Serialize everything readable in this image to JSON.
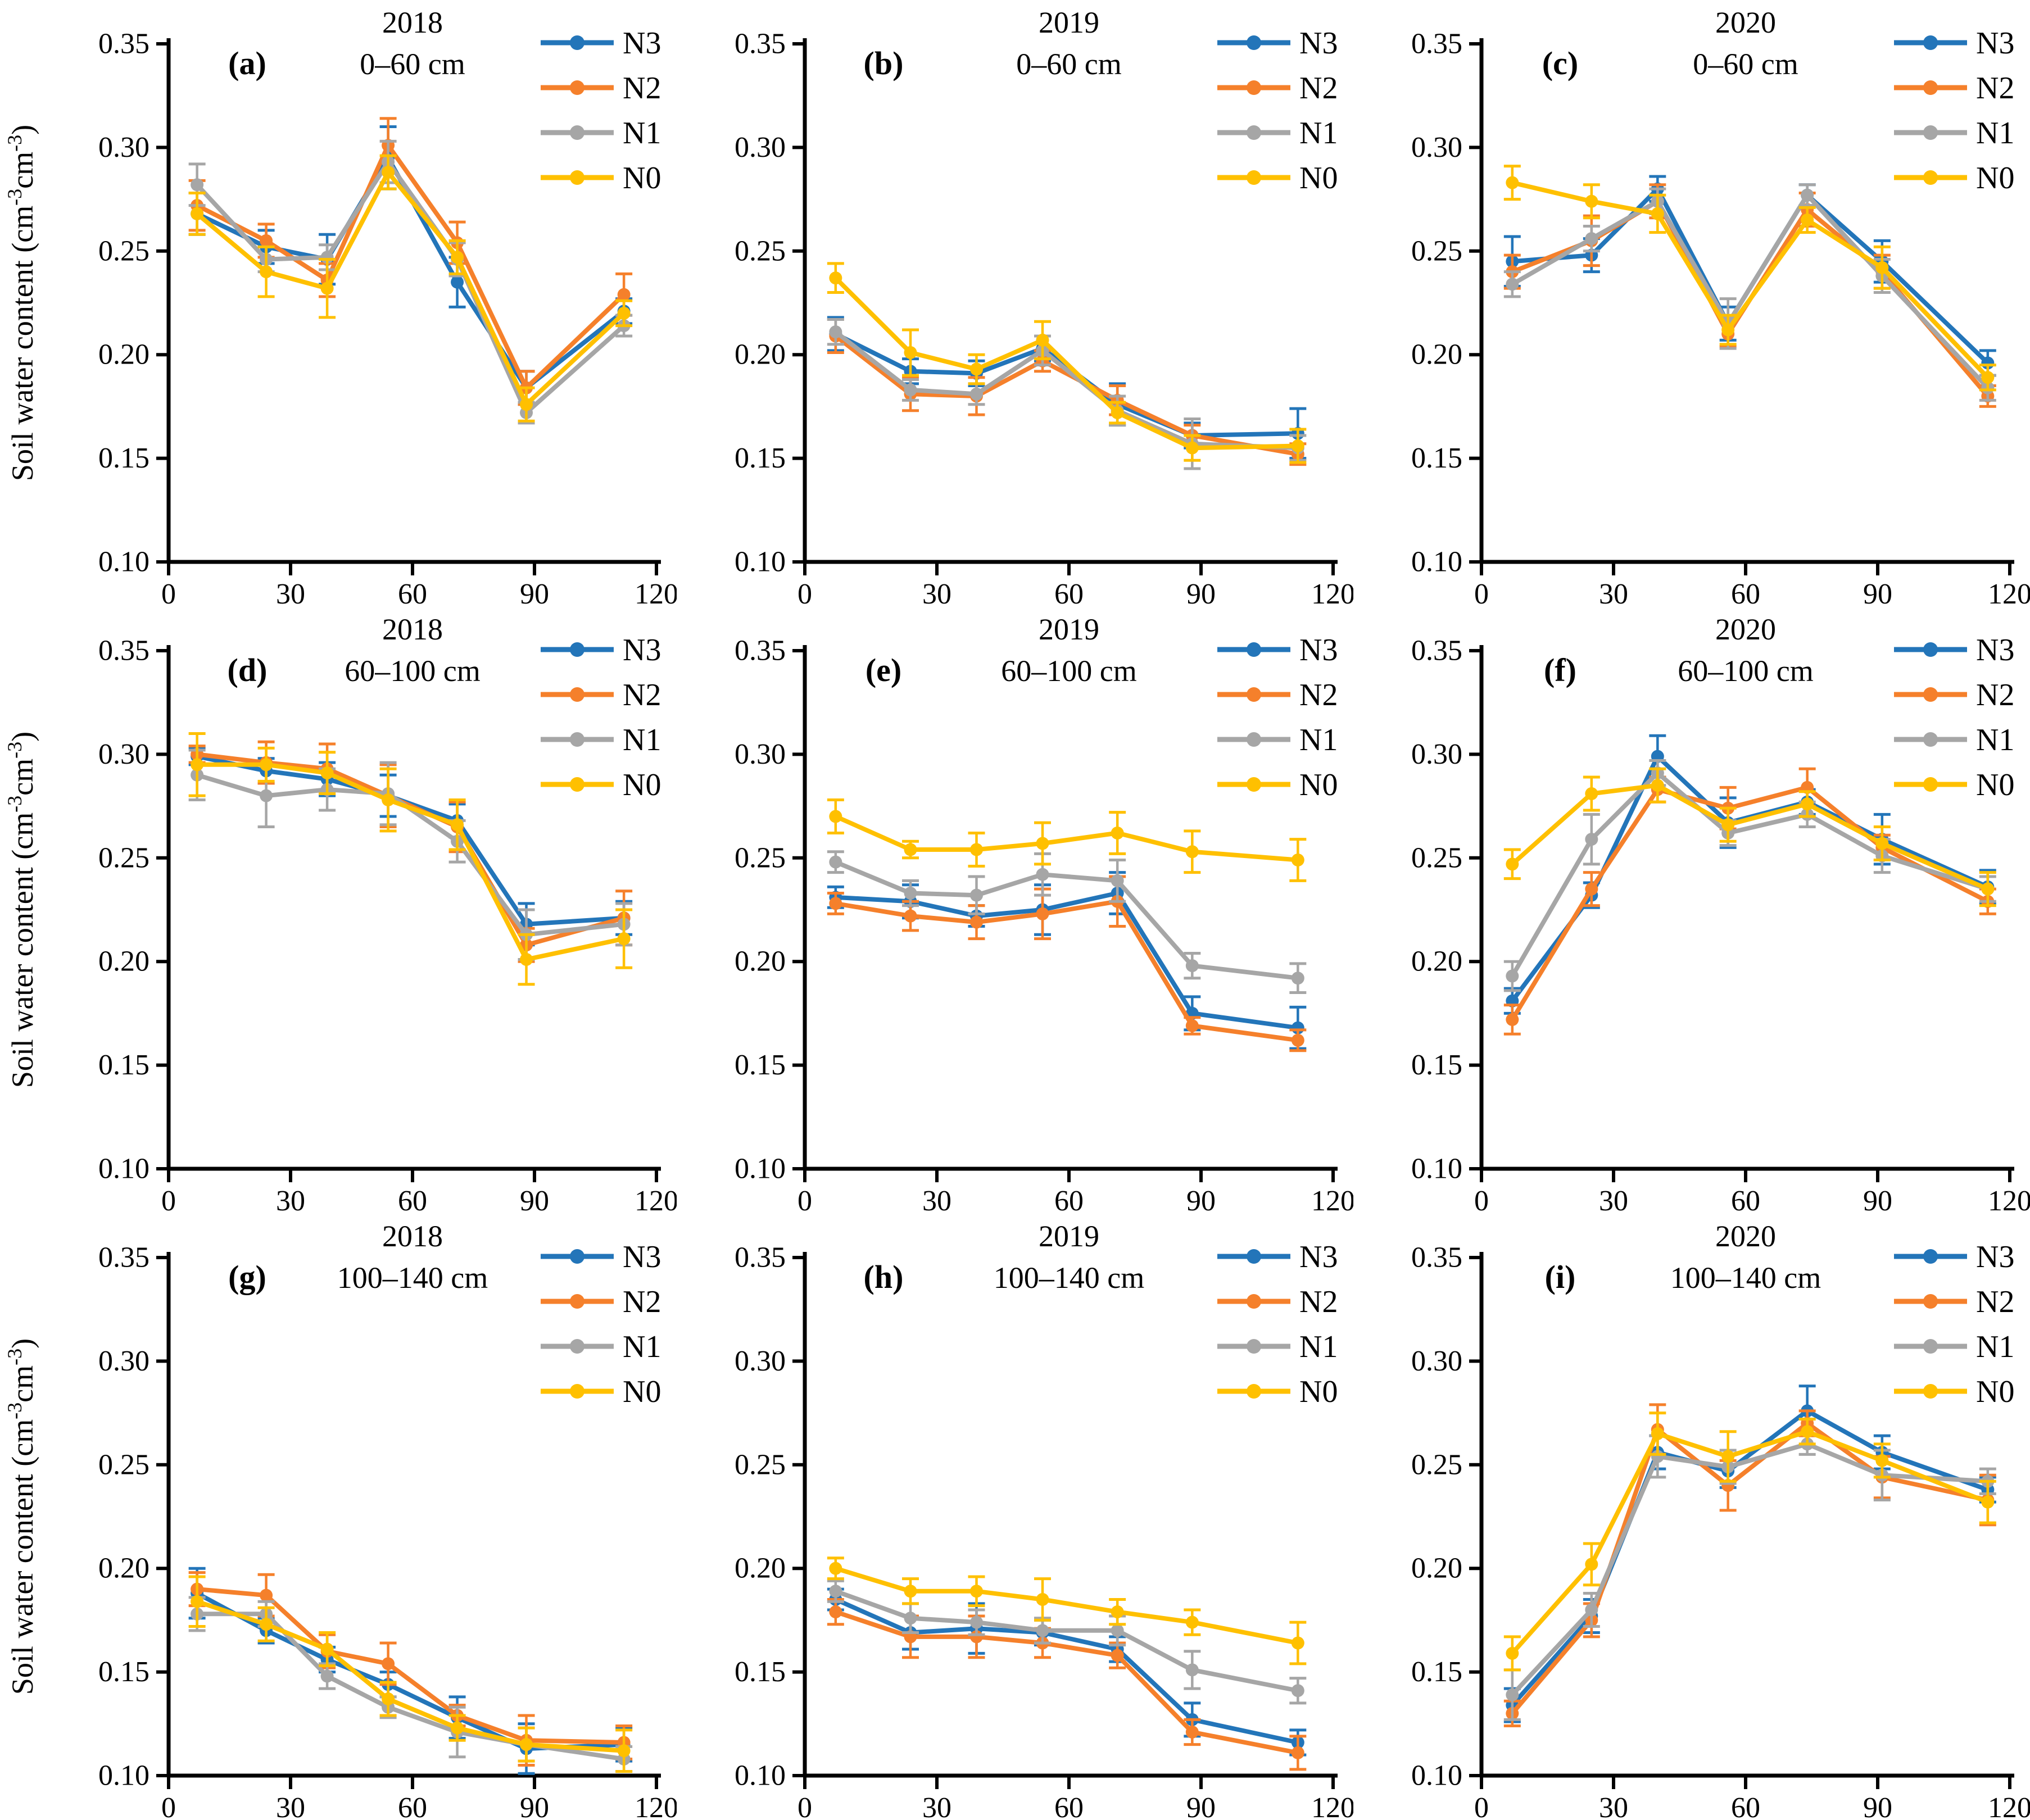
{
  "figure": {
    "y_axis_label_parts": [
      "Soil water content (cm",
      "-3",
      "cm",
      "-3",
      ")"
    ],
    "colors": {
      "N3": "#2375B9",
      "N2": "#F5802B",
      "N1": "#A6A6A6",
      "N0": "#FFC000"
    },
    "legend_entries": [
      "N3",
      "N2",
      "N1",
      "N0"
    ],
    "axes": {
      "xlim": [
        0,
        120
      ],
      "ylim": [
        0.1,
        0.35
      ],
      "x_ticks": [
        0,
        30,
        60,
        90,
        120
      ],
      "y_ticks": [
        0.1,
        0.15,
        0.2,
        0.25,
        0.3,
        0.35
      ],
      "grid": false
    }
  },
  "chart_data": [
    {
      "type": "line",
      "panel": "(a)",
      "year": "2018",
      "depth": "0–60 cm",
      "legend_position": "top-right",
      "x": [
        7,
        24,
        39,
        54,
        71,
        88,
        112
      ],
      "series": [
        {
          "name": "N3",
          "values": [
            0.268,
            0.252,
            0.246,
            0.295,
            0.235,
            0.184,
            0.221
          ],
          "errors": [
            0.01,
            0.008,
            0.012,
            0.015,
            0.012,
            0.008,
            0.006
          ]
        },
        {
          "name": "N2",
          "values": [
            0.272,
            0.255,
            0.236,
            0.301,
            0.254,
            0.184,
            0.229
          ],
          "errors": [
            0.012,
            0.008,
            0.008,
            0.013,
            0.01,
            0.008,
            0.01
          ]
        },
        {
          "name": "N1",
          "values": [
            0.282,
            0.246,
            0.247,
            0.293,
            0.246,
            0.172,
            0.214
          ],
          "errors": [
            0.01,
            0.006,
            0.006,
            0.01,
            0.008,
            0.005,
            0.005
          ]
        },
        {
          "name": "N0",
          "values": [
            0.268,
            0.24,
            0.232,
            0.288,
            0.247,
            0.176,
            0.22
          ],
          "errors": [
            0.01,
            0.012,
            0.014,
            0.008,
            0.008,
            0.008,
            0.006
          ]
        }
      ]
    },
    {
      "type": "line",
      "panel": "(b)",
      "year": "2019",
      "depth": "0–60 cm",
      "legend_position": "top-right",
      "x": [
        7,
        24,
        39,
        54,
        71,
        88,
        112
      ],
      "series": [
        {
          "name": "N3",
          "values": [
            0.21,
            0.192,
            0.191,
            0.203,
            0.176,
            0.161,
            0.162
          ],
          "errors": [
            0.008,
            0.006,
            0.006,
            0.006,
            0.01,
            0.006,
            0.012
          ]
        },
        {
          "name": "N2",
          "values": [
            0.209,
            0.181,
            0.18,
            0.197,
            0.178,
            0.161,
            0.152
          ],
          "errors": [
            0.008,
            0.008,
            0.009,
            0.005,
            0.007,
            0.005,
            0.005
          ]
        },
        {
          "name": "N1",
          "values": [
            0.211,
            0.183,
            0.181,
            0.202,
            0.173,
            0.157,
            0.155
          ],
          "errors": [
            0.006,
            0.005,
            0.005,
            0.007,
            0.007,
            0.012,
            0.006
          ]
        },
        {
          "name": "N0",
          "values": [
            0.237,
            0.201,
            0.193,
            0.207,
            0.172,
            0.155,
            0.156
          ],
          "errors": [
            0.007,
            0.011,
            0.007,
            0.009,
            0.005,
            0.006,
            0.008
          ]
        }
      ]
    },
    {
      "type": "line",
      "panel": "(c)",
      "year": "2020",
      "depth": "0–60 cm",
      "legend_position": "top-right",
      "x": [
        7,
        25,
        40,
        56,
        74,
        91,
        115
      ],
      "series": [
        {
          "name": "N3",
          "values": [
            0.245,
            0.248,
            0.28,
            0.215,
            0.277,
            0.245,
            0.196
          ],
          "errors": [
            0.012,
            0.008,
            0.006,
            0.008,
            0.005,
            0.01,
            0.006
          ]
        },
        {
          "name": "N2",
          "values": [
            0.24,
            0.255,
            0.274,
            0.21,
            0.27,
            0.24,
            0.18
          ],
          "errors": [
            0.008,
            0.012,
            0.008,
            0.006,
            0.008,
            0.008,
            0.005
          ]
        },
        {
          "name": "N1",
          "values": [
            0.234,
            0.256,
            0.274,
            0.215,
            0.277,
            0.238,
            0.184
          ],
          "errors": [
            0.006,
            0.006,
            0.006,
            0.012,
            0.005,
            0.008,
            0.006
          ]
        },
        {
          "name": "N0",
          "values": [
            0.283,
            0.274,
            0.268,
            0.212,
            0.265,
            0.242,
            0.189
          ],
          "errors": [
            0.008,
            0.008,
            0.009,
            0.007,
            0.006,
            0.01,
            0.006
          ]
        }
      ]
    },
    {
      "type": "line",
      "panel": "(d)",
      "year": "2018",
      "depth": "60–100 cm",
      "legend_position": "top-right",
      "x": [
        7,
        24,
        39,
        54,
        71,
        88,
        112
      ],
      "series": [
        {
          "name": "N3",
          "values": [
            0.299,
            0.292,
            0.288,
            0.28,
            0.268,
            0.218,
            0.221
          ],
          "errors": [
            0.004,
            0.006,
            0.008,
            0.01,
            0.008,
            0.01,
            0.008
          ]
        },
        {
          "name": "N2",
          "values": [
            0.3,
            0.296,
            0.293,
            0.28,
            0.265,
            0.208,
            0.221
          ],
          "errors": [
            0.004,
            0.01,
            0.012,
            0.015,
            0.012,
            0.008,
            0.013
          ]
        },
        {
          "name": "N1",
          "values": [
            0.29,
            0.28,
            0.283,
            0.281,
            0.258,
            0.213,
            0.218
          ],
          "errors": [
            0.012,
            0.015,
            0.01,
            0.015,
            0.01,
            0.012,
            0.01
          ]
        },
        {
          "name": "N0",
          "values": [
            0.295,
            0.295,
            0.291,
            0.278,
            0.266,
            0.201,
            0.211
          ],
          "errors": [
            0.015,
            0.008,
            0.01,
            0.015,
            0.012,
            0.012,
            0.014
          ]
        }
      ]
    },
    {
      "type": "line",
      "panel": "(e)",
      "year": "2019",
      "depth": "60–100 cm",
      "legend_position": "top-right",
      "x": [
        7,
        24,
        39,
        54,
        71,
        88,
        112
      ],
      "series": [
        {
          "name": "N3",
          "values": [
            0.231,
            0.229,
            0.222,
            0.225,
            0.233,
            0.175,
            0.168
          ],
          "errors": [
            0.005,
            0.008,
            0.005,
            0.012,
            0.01,
            0.008,
            0.01
          ]
        },
        {
          "name": "N2",
          "values": [
            0.228,
            0.222,
            0.219,
            0.223,
            0.229,
            0.169,
            0.162
          ],
          "errors": [
            0.005,
            0.007,
            0.008,
            0.012,
            0.012,
            0.004,
            0.005
          ]
        },
        {
          "name": "N1",
          "values": [
            0.248,
            0.233,
            0.232,
            0.242,
            0.239,
            0.198,
            0.192
          ],
          "errors": [
            0.005,
            0.006,
            0.009,
            0.01,
            0.01,
            0.006,
            0.007
          ]
        },
        {
          "name": "N0",
          "values": [
            0.27,
            0.254,
            0.254,
            0.257,
            0.262,
            0.253,
            0.249
          ],
          "errors": [
            0.008,
            0.004,
            0.008,
            0.01,
            0.01,
            0.01,
            0.01
          ]
        }
      ]
    },
    {
      "type": "line",
      "panel": "(f)",
      "year": "2020",
      "depth": "60–100 cm",
      "legend_position": "top-right",
      "x": [
        7,
        25,
        40,
        56,
        74,
        91,
        115
      ],
      "series": [
        {
          "name": "N3",
          "values": [
            0.181,
            0.232,
            0.299,
            0.267,
            0.277,
            0.259,
            0.236
          ],
          "errors": [
            0.006,
            0.006,
            0.01,
            0.012,
            0.006,
            0.012,
            0.008
          ]
        },
        {
          "name": "N2",
          "values": [
            0.172,
            0.235,
            0.283,
            0.274,
            0.284,
            0.255,
            0.229
          ],
          "errors": [
            0.007,
            0.008,
            0.006,
            0.01,
            0.009,
            0.006,
            0.006
          ]
        },
        {
          "name": "N1",
          "values": [
            0.193,
            0.259,
            0.291,
            0.262,
            0.271,
            0.251,
            0.235
          ],
          "errors": [
            0.007,
            0.012,
            0.006,
            0.006,
            0.006,
            0.008,
            0.006
          ]
        },
        {
          "name": "N0",
          "values": [
            0.247,
            0.281,
            0.285,
            0.266,
            0.276,
            0.257,
            0.235
          ],
          "errors": [
            0.007,
            0.008,
            0.008,
            0.008,
            0.006,
            0.008,
            0.008
          ]
        }
      ]
    },
    {
      "type": "line",
      "panel": "(g)",
      "year": "2018",
      "depth": "100–140 cm",
      "legend_position": "top-right",
      "x": [
        7,
        24,
        39,
        54,
        71,
        88,
        112
      ],
      "series": [
        {
          "name": "N3",
          "values": [
            0.188,
            0.17,
            0.156,
            0.144,
            0.128,
            0.113,
            0.115
          ],
          "errors": [
            0.012,
            0.006,
            0.006,
            0.006,
            0.01,
            0.012,
            0.008
          ]
        },
        {
          "name": "N2",
          "values": [
            0.19,
            0.187,
            0.16,
            0.154,
            0.129,
            0.117,
            0.116
          ],
          "errors": [
            0.008,
            0.01,
            0.008,
            0.01,
            0.005,
            0.012,
            0.008
          ]
        },
        {
          "name": "N1",
          "values": [
            0.178,
            0.178,
            0.148,
            0.133,
            0.121,
            0.115,
            0.108
          ],
          "errors": [
            0.008,
            0.006,
            0.006,
            0.005,
            0.012,
            0.008,
            0.006
          ]
        },
        {
          "name": "N0",
          "values": [
            0.184,
            0.173,
            0.161,
            0.137,
            0.123,
            0.115,
            0.112
          ],
          "errors": [
            0.012,
            0.008,
            0.008,
            0.008,
            0.006,
            0.008,
            0.01
          ]
        }
      ]
    },
    {
      "type": "line",
      "panel": "(h)",
      "year": "2019",
      "depth": "100–140 cm",
      "legend_position": "top-right",
      "x": [
        7,
        24,
        39,
        54,
        71,
        88,
        112
      ],
      "series": [
        {
          "name": "N3",
          "values": [
            0.185,
            0.169,
            0.171,
            0.169,
            0.161,
            0.127,
            0.116
          ],
          "errors": [
            0.005,
            0.008,
            0.012,
            0.006,
            0.006,
            0.008,
            0.006
          ]
        },
        {
          "name": "N2",
          "values": [
            0.179,
            0.167,
            0.167,
            0.164,
            0.158,
            0.121,
            0.111
          ],
          "errors": [
            0.006,
            0.01,
            0.01,
            0.007,
            0.006,
            0.006,
            0.008
          ]
        },
        {
          "name": "N1",
          "values": [
            0.189,
            0.176,
            0.174,
            0.17,
            0.17,
            0.151,
            0.141
          ],
          "errors": [
            0.005,
            0.007,
            0.006,
            0.006,
            0.007,
            0.009,
            0.006
          ]
        },
        {
          "name": "N0",
          "values": [
            0.2,
            0.189,
            0.189,
            0.185,
            0.179,
            0.174,
            0.164
          ],
          "errors": [
            0.005,
            0.006,
            0.007,
            0.01,
            0.006,
            0.006,
            0.01
          ]
        }
      ]
    },
    {
      "type": "line",
      "panel": "(i)",
      "year": "2020",
      "depth": "100–140 cm",
      "legend_position": "top-right",
      "x": [
        7,
        25,
        40,
        56,
        74,
        91,
        115
      ],
      "series": [
        {
          "name": "N3",
          "values": [
            0.134,
            0.177,
            0.256,
            0.247,
            0.276,
            0.256,
            0.238
          ],
          "errors": [
            0.008,
            0.008,
            0.008,
            0.008,
            0.012,
            0.008,
            0.006
          ]
        },
        {
          "name": "N2",
          "values": [
            0.13,
            0.175,
            0.267,
            0.24,
            0.27,
            0.244,
            0.233
          ],
          "errors": [
            0.006,
            0.008,
            0.012,
            0.012,
            0.006,
            0.01,
            0.012
          ]
        },
        {
          "name": "N1",
          "values": [
            0.139,
            0.18,
            0.254,
            0.249,
            0.26,
            0.245,
            0.242
          ],
          "errors": [
            0.012,
            0.008,
            0.01,
            0.008,
            0.005,
            0.012,
            0.006
          ]
        },
        {
          "name": "N0",
          "values": [
            0.159,
            0.202,
            0.265,
            0.254,
            0.266,
            0.252,
            0.232
          ],
          "errors": [
            0.008,
            0.01,
            0.01,
            0.012,
            0.006,
            0.008,
            0.01
          ]
        }
      ]
    }
  ]
}
